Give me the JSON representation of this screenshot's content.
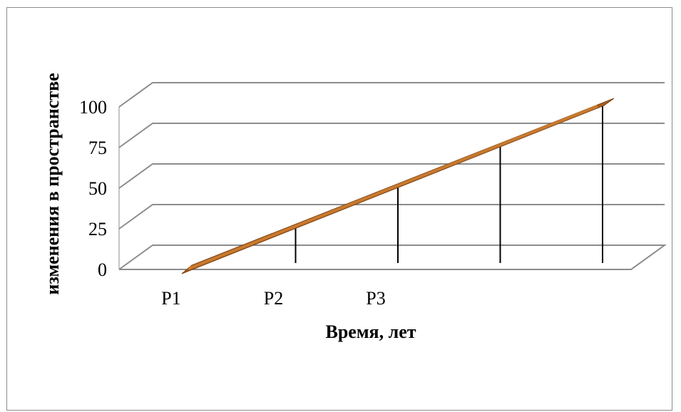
{
  "chart_data": {
    "type": "line",
    "title": "",
    "xlabel": "Время, лет",
    "ylabel": "изменения в пространстве",
    "categories": [
      "P1",
      "P2",
      "P3",
      "",
      ""
    ],
    "series": [
      {
        "values": [
          0,
          25,
          50,
          75,
          100
        ],
        "color": "#c87a2e"
      }
    ],
    "drop_lines": true,
    "ylim": [
      0,
      100
    ],
    "yticks": [
      0,
      25,
      50,
      75,
      100
    ],
    "grid": true,
    "legend": "none",
    "style": "3d-perspective"
  }
}
